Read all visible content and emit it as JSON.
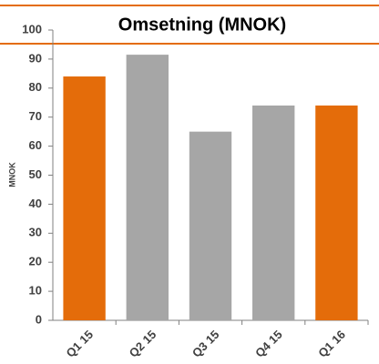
{
  "chart_data": {
    "type": "bar",
    "title": "Omsetning (MNOK)",
    "y_label": "MNOK",
    "categories": [
      "Q1 15",
      "Q2 15",
      "Q3 15",
      "Q4 15",
      "Q1 16"
    ],
    "values": [
      84,
      91.5,
      65,
      74,
      74
    ],
    "colors": [
      "#e46c0a",
      "#a6a6a6",
      "#a6a6a6",
      "#a6a6a6",
      "#e46c0a"
    ],
    "ylim": [
      0,
      100
    ],
    "yticks": [
      0,
      10,
      20,
      30,
      40,
      50,
      60,
      70,
      80,
      90,
      100
    ],
    "grid": false
  }
}
